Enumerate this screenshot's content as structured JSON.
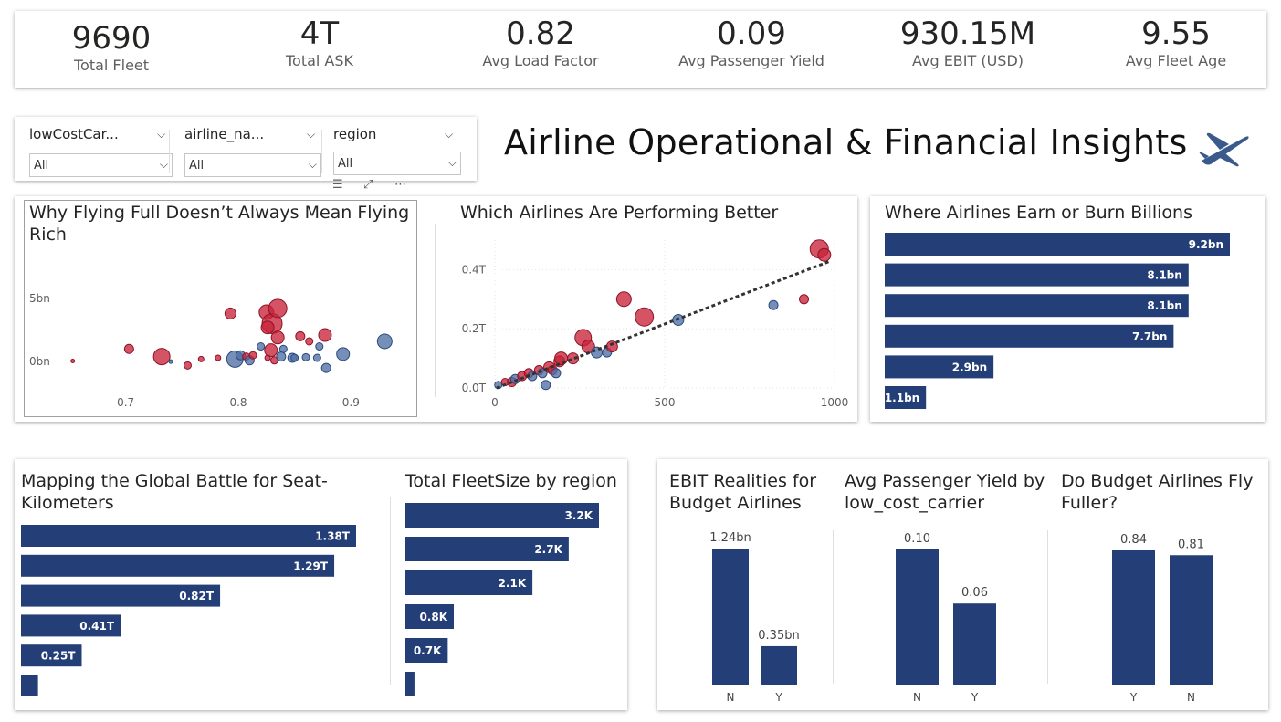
{
  "kpis": [
    {
      "value": "9690",
      "label": "Total Fleet"
    },
    {
      "value": "4T",
      "label": "Total ASK"
    },
    {
      "value": "0.82",
      "label": "Avg Load Factor"
    },
    {
      "value": "0.09",
      "label": "Avg Passenger Yield"
    },
    {
      "value": "930.15M",
      "label": "Avg EBIT (USD)"
    },
    {
      "value": "9.55",
      "label": "Avg Fleet Age"
    }
  ],
  "slicers": [
    {
      "title": "lowCostCar...",
      "value": "All"
    },
    {
      "title": "airline_na...",
      "value": "All"
    },
    {
      "title": "region",
      "value": "All"
    }
  ],
  "dashboard_title": "Airline Operational & Financial Insights",
  "colors": {
    "bar": "#243f77",
    "red": "#c8233a",
    "blue": "#4f6fa5"
  },
  "chart_data": [
    {
      "id": "loadfactor_ebit",
      "type": "scatter",
      "title": "Why Flying Full Doesn’t Always Mean Flying Rich",
      "xlim": [
        0.65,
        0.95
      ],
      "ylim": [
        -1.5,
        7
      ],
      "x_ticks": [
        {
          "v": 0.7,
          "label": "0.7"
        },
        {
          "v": 0.8,
          "label": "0.8"
        },
        {
          "v": 0.9,
          "label": "0.9"
        }
      ],
      "y_ticks": [
        {
          "v": 0,
          "label": "0bn"
        },
        {
          "v": 5,
          "label": "5bn"
        }
      ],
      "points": [
        {
          "x": 0.653,
          "y": 0.05,
          "s": 2,
          "c": "red"
        },
        {
          "x": 0.703,
          "y": 1.0,
          "s": 5,
          "c": "red"
        },
        {
          "x": 0.732,
          "y": 0.4,
          "s": 9,
          "c": "red"
        },
        {
          "x": 0.74,
          "y": 0.0,
          "s": 2,
          "c": "blue"
        },
        {
          "x": 0.755,
          "y": -0.3,
          "s": 4,
          "c": "red"
        },
        {
          "x": 0.767,
          "y": 0.2,
          "s": 3,
          "c": "red"
        },
        {
          "x": 0.782,
          "y": 0.3,
          "s": 3,
          "c": "red"
        },
        {
          "x": 0.793,
          "y": 3.8,
          "s": 6,
          "c": "red"
        },
        {
          "x": 0.797,
          "y": 0.2,
          "s": 9,
          "c": "blue"
        },
        {
          "x": 0.802,
          "y": 0.5,
          "s": 5,
          "c": "blue"
        },
        {
          "x": 0.807,
          "y": 0.4,
          "s": 4,
          "c": "red"
        },
        {
          "x": 0.81,
          "y": 0.1,
          "s": 5,
          "c": "blue"
        },
        {
          "x": 0.813,
          "y": 0.5,
          "s": 4,
          "c": "red"
        },
        {
          "x": 0.82,
          "y": 1.2,
          "s": 4,
          "c": "blue"
        },
        {
          "x": 0.825,
          "y": 3.9,
          "s": 8,
          "c": "red"
        },
        {
          "x": 0.83,
          "y": 3.0,
          "s": 11,
          "c": "red"
        },
        {
          "x": 0.826,
          "y": 2.7,
          "s": 7,
          "c": "red"
        },
        {
          "x": 0.835,
          "y": 4.2,
          "s": 10,
          "c": "red"
        },
        {
          "x": 0.829,
          "y": 0.9,
          "s": 7,
          "c": "red"
        },
        {
          "x": 0.835,
          "y": 1.9,
          "s": 7,
          "c": "red"
        },
        {
          "x": 0.84,
          "y": 1.0,
          "s": 4,
          "c": "blue"
        },
        {
          "x": 0.826,
          "y": 0.3,
          "s": 3,
          "c": "red"
        },
        {
          "x": 0.832,
          "y": 0.1,
          "s": 4,
          "c": "red"
        },
        {
          "x": 0.838,
          "y": 0.4,
          "s": 5,
          "c": "blue"
        },
        {
          "x": 0.848,
          "y": 0.3,
          "s": 5,
          "c": "blue"
        },
        {
          "x": 0.855,
          "y": 2.0,
          "s": 5,
          "c": "red"
        },
        {
          "x": 0.85,
          "y": 0.3,
          "s": 4,
          "c": "blue"
        },
        {
          "x": 0.86,
          "y": 0.35,
          "s": 4,
          "c": "blue"
        },
        {
          "x": 0.863,
          "y": 1.6,
          "s": 4,
          "c": "red"
        },
        {
          "x": 0.87,
          "y": 0.3,
          "s": 4,
          "c": "blue"
        },
        {
          "x": 0.877,
          "y": 2.1,
          "s": 7,
          "c": "red"
        },
        {
          "x": 0.878,
          "y": -0.5,
          "s": 5,
          "c": "blue"
        },
        {
          "x": 0.872,
          "y": 1.2,
          "s": 4,
          "c": "blue"
        },
        {
          "x": 0.893,
          "y": 0.6,
          "s": 7,
          "c": "blue"
        },
        {
          "x": 0.93,
          "y": 1.6,
          "s": 8,
          "c": "blue"
        }
      ]
    },
    {
      "id": "ask_revenue",
      "type": "scatter",
      "title": "Which Airlines Are Performing Better",
      "xlim": [
        0,
        1000
      ],
      "ylim": [
        0,
        0.5
      ],
      "x_ticks": [
        {
          "v": 0,
          "label": "0"
        },
        {
          "v": 500,
          "label": "500"
        },
        {
          "v": 1000,
          "label": "1000"
        }
      ],
      "y_ticks": [
        {
          "v": 0,
          "label": "0.0T"
        },
        {
          "v": 0.2,
          "label": "0.2T"
        },
        {
          "v": 0.4,
          "label": "0.4T"
        }
      ],
      "trend": [
        [
          5,
          0.0
        ],
        [
          990,
          0.43
        ]
      ],
      "points": [
        {
          "x": 10,
          "y": 0.01,
          "s": 4,
          "c": "blue"
        },
        {
          "x": 30,
          "y": 0.02,
          "s": 4,
          "c": "red"
        },
        {
          "x": 50,
          "y": 0.02,
          "s": 5,
          "c": "red"
        },
        {
          "x": 60,
          "y": 0.03,
          "s": 5,
          "c": "blue"
        },
        {
          "x": 80,
          "y": 0.04,
          "s": 5,
          "c": "red"
        },
        {
          "x": 100,
          "y": 0.05,
          "s": 5,
          "c": "red"
        },
        {
          "x": 110,
          "y": 0.04,
          "s": 5,
          "c": "blue"
        },
        {
          "x": 130,
          "y": 0.06,
          "s": 5,
          "c": "red"
        },
        {
          "x": 140,
          "y": 0.05,
          "s": 5,
          "c": "blue"
        },
        {
          "x": 150,
          "y": 0.01,
          "s": 5,
          "c": "blue"
        },
        {
          "x": 160,
          "y": 0.07,
          "s": 6,
          "c": "red"
        },
        {
          "x": 170,
          "y": 0.06,
          "s": 5,
          "c": "red"
        },
        {
          "x": 180,
          "y": 0.05,
          "s": 5,
          "c": "blue"
        },
        {
          "x": 190,
          "y": 0.09,
          "s": 6,
          "c": "red"
        },
        {
          "x": 195,
          "y": 0.1,
          "s": 7,
          "c": "red"
        },
        {
          "x": 230,
          "y": 0.1,
          "s": 6,
          "c": "red"
        },
        {
          "x": 260,
          "y": 0.17,
          "s": 9,
          "c": "red"
        },
        {
          "x": 275,
          "y": 0.14,
          "s": 7,
          "c": "red"
        },
        {
          "x": 300,
          "y": 0.12,
          "s": 6,
          "c": "blue"
        },
        {
          "x": 330,
          "y": 0.12,
          "s": 5,
          "c": "blue"
        },
        {
          "x": 345,
          "y": 0.14,
          "s": 6,
          "c": "red"
        },
        {
          "x": 380,
          "y": 0.3,
          "s": 8,
          "c": "red"
        },
        {
          "x": 440,
          "y": 0.24,
          "s": 10,
          "c": "red"
        },
        {
          "x": 540,
          "y": 0.23,
          "s": 6,
          "c": "blue"
        },
        {
          "x": 820,
          "y": 0.28,
          "s": 5,
          "c": "blue"
        },
        {
          "x": 910,
          "y": 0.3,
          "s": 5,
          "c": "red"
        },
        {
          "x": 955,
          "y": 0.47,
          "s": 10,
          "c": "red"
        },
        {
          "x": 970,
          "y": 0.45,
          "s": 7,
          "c": "red"
        }
      ]
    },
    {
      "id": "ebit_bars",
      "type": "bar",
      "title": "Where Airlines Earn or Burn Billions",
      "values": [
        9.2,
        8.1,
        8.1,
        7.7,
        2.9,
        1.1
      ],
      "labels": [
        "9.2bn",
        "8.1bn",
        "8.1bn",
        "7.7bn",
        "2.9bn",
        "1.1bn"
      ]
    },
    {
      "id": "ask_bars",
      "type": "bar",
      "title": "Mapping the Global Battle for Seat-Kilometers",
      "values": [
        1.38,
        1.29,
        0.82,
        0.41,
        0.25,
        0.07
      ],
      "labels": [
        "1.38T",
        "1.29T",
        "0.82T",
        "0.41T",
        "0.25T",
        ""
      ]
    },
    {
      "id": "fleet_bars",
      "type": "bar",
      "title": "Total FleetSize by region",
      "values": [
        3.2,
        2.7,
        2.1,
        0.8,
        0.7,
        0.15
      ],
      "labels": [
        "3.2K",
        "2.7K",
        "2.1K",
        "0.8K",
        "0.7K",
        ""
      ]
    },
    {
      "id": "ebit_lcc",
      "type": "bar",
      "title": "EBIT Realities for Budget Airlines",
      "categories": [
        "N",
        "Y"
      ],
      "values": [
        1.24,
        0.35
      ],
      "labels": [
        "1.24bn",
        "0.35bn"
      ]
    },
    {
      "id": "yield_lcc",
      "type": "bar",
      "title": "Avg Passenger Yield by low_cost_carrier",
      "categories": [
        "N",
        "Y"
      ],
      "values": [
        0.1,
        0.06
      ],
      "labels": [
        "0.10",
        "0.06"
      ]
    },
    {
      "id": "lf_lcc",
      "type": "bar",
      "title": "Do Budget Airlines Fly Fuller?",
      "categories": [
        "Y",
        "N"
      ],
      "values": [
        0.84,
        0.81
      ],
      "labels": [
        "0.84",
        "0.81"
      ]
    }
  ]
}
